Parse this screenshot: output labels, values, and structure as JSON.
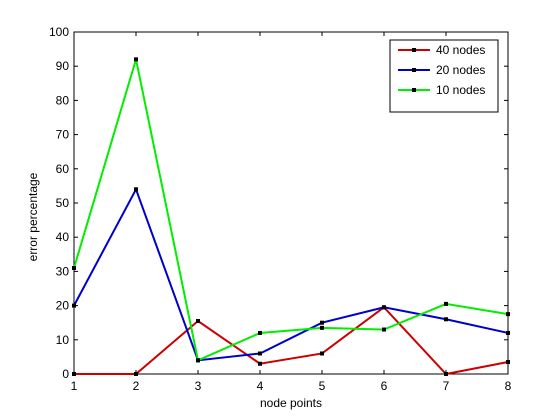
{
  "chart_data": {
    "type": "line",
    "title": "",
    "xlabel": "node points",
    "ylabel": "error percentage",
    "x": [
      1,
      2,
      3,
      4,
      5,
      6,
      7,
      8
    ],
    "xlim": [
      1,
      8
    ],
    "ylim": [
      0,
      100
    ],
    "xticks": [
      1,
      2,
      3,
      4,
      5,
      6,
      7,
      8
    ],
    "yticks": [
      0,
      10,
      20,
      30,
      40,
      50,
      60,
      70,
      80,
      90,
      100
    ],
    "grid": false,
    "legend_position": "top-right",
    "series": [
      {
        "name": "40 nodes",
        "color": "#cc0000",
        "values": [
          0,
          0,
          15.5,
          3,
          6,
          19.5,
          0,
          3.5
        ]
      },
      {
        "name": "20 nodes",
        "color": "#0000cc",
        "values": [
          20,
          54,
          4,
          6,
          15,
          19.5,
          16,
          12
        ]
      },
      {
        "name": "10 nodes",
        "color": "#00ee00",
        "values": [
          31,
          92,
          4,
          12,
          13.5,
          13,
          20.5,
          17.5
        ]
      }
    ]
  }
}
